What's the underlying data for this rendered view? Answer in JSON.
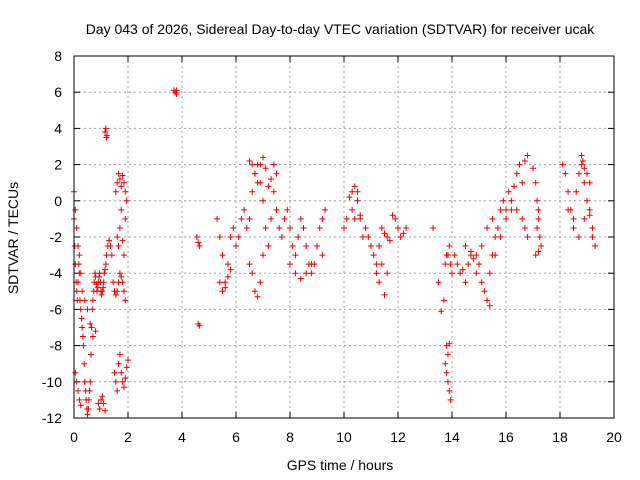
{
  "chart_data": {
    "type": "scatter",
    "title": "Day 043 of 2026, Sidereal Day-to-day VTEC variation (SDTVAR) for receiver ucak",
    "xlabel": "GPS time / hours",
    "ylabel": "SDTVAR / TECUs",
    "xlim": [
      0,
      20
    ],
    "ylim": [
      -12,
      8
    ],
    "grid": true,
    "marker": "plus",
    "color": "#ee0000",
    "xticks": [
      0,
      2,
      4,
      6,
      8,
      10,
      12,
      14,
      16,
      18,
      20
    ],
    "yticks": [
      -12,
      -10,
      -8,
      -6,
      -4,
      -2,
      0,
      2,
      4,
      6,
      8
    ],
    "xtick_labels": [
      "0",
      "2",
      "4",
      "6",
      "8",
      "10",
      "12",
      "14",
      "16",
      "18",
      "20"
    ],
    "ytick_labels": [
      "-12",
      "-10",
      "-8",
      "-6",
      "-4",
      "-2",
      "0",
      "2",
      "4",
      "6",
      "8"
    ],
    "series": [
      {
        "name": "ucak SDTVAR",
        "x": [
          0.0,
          0.03,
          0.05,
          0.08,
          0.1,
          0.12,
          0.15,
          0.18,
          0.2,
          0.22,
          0.25,
          0.28,
          0.3,
          0.33,
          0.35,
          0.38,
          0.4,
          0.43,
          0.45,
          0.48,
          0.5,
          0.53,
          0.55,
          0.58,
          0.6,
          0.63,
          0.65,
          0.68,
          0.7,
          0.73,
          0.75,
          0.78,
          0.8,
          0.83,
          0.85,
          0.88,
          0.9,
          0.93,
          0.95,
          0.98,
          1.0,
          1.02,
          1.05,
          1.08,
          1.1,
          1.12,
          1.15,
          1.18,
          1.2,
          1.25,
          1.3,
          1.35,
          1.4,
          1.45,
          1.5,
          1.55,
          1.6,
          1.65,
          1.7,
          1.75,
          1.8,
          1.85,
          1.9,
          0.0,
          0.05,
          0.1,
          0.15,
          0.2,
          0.25,
          0.3,
          0.4,
          0.5,
          0.6,
          0.7,
          0.8,
          0.05,
          0.1,
          0.15,
          0.2,
          0.25,
          0.9,
          0.95,
          1.0,
          1.05,
          1.1,
          1.15,
          1.5,
          1.55,
          1.6,
          1.65,
          1.7,
          1.75,
          1.8,
          1.85,
          1.9,
          1.95,
          2.0,
          1.55,
          1.6,
          1.65,
          1.7,
          1.75,
          1.8,
          1.85,
          1.9,
          1.95,
          1.6,
          1.65,
          1.7,
          1.75,
          1.8,
          1.85,
          1.9,
          1.15,
          1.2,
          1.18,
          1.22,
          3.7,
          3.75,
          3.8,
          3.8,
          4.55,
          4.6,
          4.65,
          4.65,
          4.6,
          5.3,
          5.4,
          5.5,
          5.6,
          5.7,
          5.8,
          5.9,
          6.0,
          6.1,
          6.2,
          6.3,
          6.4,
          6.5,
          6.6,
          6.7,
          6.8,
          6.9,
          7.0,
          7.1,
          7.2,
          7.3,
          7.4,
          7.5,
          7.6,
          7.7,
          7.8,
          7.9,
          8.0,
          8.1,
          8.2,
          8.3,
          8.4,
          8.5,
          8.6,
          8.7,
          8.8,
          8.9,
          9.0,
          9.1,
          9.2,
          9.3,
          5.4,
          5.5,
          5.6,
          5.7,
          5.8,
          6.5,
          6.6,
          6.7,
          6.8,
          6.9,
          7.0,
          6.5,
          6.6,
          6.7,
          6.8,
          6.9,
          7.0,
          7.1,
          7.2,
          7.3,
          7.4,
          7.5,
          8.0,
          8.2,
          8.4,
          8.6,
          8.8,
          9.0,
          9.2,
          10.0,
          10.1,
          10.2,
          10.3,
          10.4,
          10.5,
          10.6,
          10.7,
          10.8,
          10.9,
          11.0,
          11.1,
          11.2,
          11.3,
          11.4,
          11.5,
          11.6,
          11.7,
          11.8,
          11.9,
          12.0,
          12.1,
          12.2,
          12.3,
          10.3,
          10.4,
          10.5,
          10.6,
          11.2,
          11.3,
          11.4,
          11.5,
          11.6,
          13.3,
          13.5,
          13.6,
          13.7,
          13.75,
          13.8,
          13.85,
          13.9,
          13.95,
          14.0,
          14.1,
          14.2,
          14.3,
          14.4,
          14.5,
          14.6,
          14.7,
          14.8,
          14.9,
          15.0,
          15.1,
          15.2,
          15.3,
          15.4,
          15.5,
          15.6,
          15.7,
          15.8,
          15.9,
          16.0,
          16.1,
          16.2,
          16.3,
          16.4,
          16.5,
          16.6,
          16.7,
          16.8,
          13.75,
          13.8,
          13.85,
          13.9,
          13.95,
          13.8,
          13.85,
          13.9,
          14.5,
          14.7,
          14.9,
          15.1,
          15.3,
          15.5,
          15.4,
          15.6,
          15.8,
          16.0,
          16.2,
          16.4,
          16.6,
          16.7,
          16.8,
          17.0,
          17.1,
          17.15,
          17.2,
          17.25,
          17.3,
          17.2,
          17.1,
          17.15,
          17.2,
          18.1,
          18.2,
          18.3,
          18.4,
          18.5,
          18.6,
          18.7,
          18.8,
          18.9,
          19.0,
          19.1,
          19.2,
          19.3,
          18.3,
          18.5,
          18.7,
          18.9,
          19.1,
          18.8,
          18.85,
          18.9,
          19.0,
          19.1,
          19.2
        ],
        "y": [
          -1.0,
          -2.5,
          -3.5,
          -4.5,
          -5.0,
          -5.5,
          -4.5,
          -3.5,
          -4.0,
          -5.5,
          -6.0,
          -6.5,
          -7.0,
          -7.5,
          -8.0,
          -9.0,
          -10.0,
          -10.5,
          -11.0,
          -11.5,
          -11.8,
          -11.5,
          -11.0,
          -10.5,
          -10.0,
          -8.5,
          -7.0,
          -6.0,
          -5.5,
          -5.0,
          -4.5,
          -4.0,
          -4.2,
          -4.6,
          -5.0,
          -4.8,
          -4.5,
          -4.2,
          -4.0,
          -4.5,
          -5.0,
          -5.2,
          -5.0,
          -4.8,
          -4.5,
          -4.0,
          -3.8,
          -3.5,
          -3.0,
          -2.5,
          -2.2,
          -2.5,
          -3.0,
          -4.5,
          -5.0,
          -5.2,
          -5.0,
          -4.5,
          -4.0,
          -4.2,
          -4.5,
          -5.0,
          -5.5,
          0.5,
          -0.5,
          -1.5,
          -2.5,
          -3.0,
          -4.0,
          -5.0,
          -5.5,
          -6.0,
          -6.8,
          -7.5,
          -7.2,
          -9.5,
          -10.0,
          -10.5,
          -11.0,
          -11.3,
          -11.2,
          -11.5,
          -11.0,
          -10.8,
          -11.2,
          -11.6,
          -9.5,
          -10.0,
          -10.5,
          -9.0,
          -8.5,
          -9.5,
          -10.0,
          -10.3,
          -9.8,
          -9.2,
          -8.8,
          0.5,
          1.0,
          1.5,
          1.2,
          0.8,
          1.4,
          1.0,
          0.5,
          0.0,
          -2.0,
          -2.5,
          -1.5,
          -0.5,
          -2.2,
          -3.0,
          -1.0,
          3.8,
          3.5,
          4.0,
          3.6,
          6.1,
          6.0,
          6.1,
          5.9,
          -2.0,
          -2.3,
          -2.5,
          -6.9,
          -6.8,
          -1.0,
          -2.0,
          -3.0,
          -4.5,
          -3.5,
          -2.0,
          -1.5,
          -2.5,
          -2.0,
          -1.0,
          -0.5,
          -1.5,
          -1.0,
          0.5,
          1.5,
          2.0,
          1.0,
          0.0,
          -1.5,
          -2.5,
          -1.0,
          0.5,
          -0.5,
          -1.5,
          -2.0,
          -1.0,
          -0.5,
          -1.5,
          -2.5,
          -3.0,
          -2.0,
          -1.0,
          -1.5,
          -2.5,
          -3.5,
          -4.0,
          -3.5,
          -2.5,
          -1.5,
          -1.0,
          -0.5,
          -4.5,
          -5.0,
          -4.8,
          -4.2,
          -3.8,
          -3.5,
          -4.0,
          -5.0,
          -5.3,
          -4.5,
          -3.0,
          2.2,
          2.0,
          1.5,
          1.0,
          2.0,
          2.4,
          1.8,
          0.8,
          1.2,
          2.0,
          1.5,
          -3.5,
          -4.0,
          -4.3,
          -4.0,
          -3.5,
          -2.5,
          -3.0,
          -1.5,
          -1.0,
          0.2,
          0.5,
          0.8,
          0.0,
          -1.0,
          -2.0,
          -1.5,
          -2.0,
          -2.5,
          -3.0,
          -3.5,
          -2.5,
          -1.5,
          -1.8,
          -2.0,
          -2.2,
          -0.8,
          -1.0,
          -1.5,
          -2.0,
          -1.8,
          -1.5,
          -0.5,
          -1.0,
          0.5,
          -0.8,
          -4.0,
          -4.5,
          -3.5,
          -5.2,
          -4.0,
          -1.5,
          -4.5,
          -6.1,
          -5.5,
          -3.5,
          -3.0,
          -3.0,
          -2.5,
          -3.5,
          -4.0,
          -3.0,
          -3.5,
          -4.0,
          -3.8,
          -4.5,
          -3.5,
          -3.0,
          -3.2,
          -4.0,
          -3.5,
          -4.5,
          -5.0,
          -5.5,
          -4.0,
          -3.0,
          -2.0,
          -1.5,
          -0.5,
          0.0,
          -1.0,
          0.5,
          -0.5,
          0.8,
          1.5,
          2.0,
          1.0,
          2.2,
          2.5,
          -9.0,
          -9.5,
          -10.0,
          -10.5,
          -11.0,
          -8.0,
          -8.5,
          -7.9,
          -2.5,
          -2.8,
          -3.0,
          -2.5,
          -1.5,
          -1.0,
          -5.8,
          -3.0,
          -2.0,
          -0.5,
          0.0,
          -0.5,
          -1.0,
          -1.5,
          -2.0,
          1.8,
          1.0,
          0.0,
          -1.0,
          -2.0,
          -2.5,
          -2.8,
          -3.0,
          -1.5,
          -0.5,
          2.0,
          1.5,
          0.5,
          -0.5,
          -1.0,
          0.5,
          1.5,
          2.0,
          1.0,
          0.0,
          -0.5,
          -1.5,
          -2.5,
          -0.5,
          -1.5,
          -2.0,
          -1.0,
          -0.8,
          2.5,
          2.2,
          1.8,
          1.5,
          1.0,
          -2.0
        ]
      }
    ]
  }
}
